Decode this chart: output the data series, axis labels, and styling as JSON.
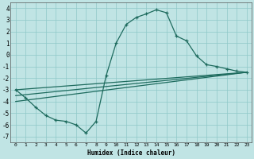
{
  "xlabel": "Humidex (Indice chaleur)",
  "background_color": "#c0e4e4",
  "line_color": "#1e6b5e",
  "xlim": [
    -0.5,
    23.5
  ],
  "ylim": [
    -7.5,
    4.5
  ],
  "xtick_labels": [
    "0",
    "1",
    "2",
    "3",
    "4",
    "5",
    "6",
    "7",
    "8",
    "9",
    "10",
    "11",
    "12",
    "13",
    "14",
    "15",
    "16",
    "17",
    "18",
    "19",
    "20",
    "21",
    "22",
    "23"
  ],
  "ytick_labels": [
    "-7",
    "-6",
    "-5",
    "-4",
    "-3",
    "-2",
    "-1",
    "0",
    "1",
    "2",
    "3",
    "4"
  ],
  "ytick_vals": [
    -7,
    -6,
    -5,
    -4,
    -3,
    -2,
    -1,
    0,
    1,
    2,
    3,
    4
  ],
  "xtick_vals": [
    0,
    1,
    2,
    3,
    4,
    5,
    6,
    7,
    8,
    9,
    10,
    11,
    12,
    13,
    14,
    15,
    16,
    17,
    18,
    19,
    20,
    21,
    22,
    23
  ],
  "main_line": {
    "x": [
      0,
      1,
      2,
      3,
      4,
      5,
      6,
      7,
      8,
      9,
      10,
      11,
      12,
      13,
      14,
      15,
      16,
      17,
      18,
      19,
      20,
      21,
      22,
      23
    ],
    "y": [
      -3,
      -3.7,
      -4.5,
      -5.2,
      -5.6,
      -5.7,
      -6.0,
      -6.7,
      -5.7,
      -1.8,
      1.0,
      2.6,
      3.2,
      3.5,
      3.85,
      3.6,
      1.6,
      1.2,
      -0.1,
      -0.85,
      -1.0,
      -1.2,
      -1.4,
      -1.5
    ]
  },
  "diag_line1": {
    "x": [
      0,
      23
    ],
    "y": [
      -3.0,
      -1.5
    ]
  },
  "diag_line2": {
    "x": [
      0,
      23
    ],
    "y": [
      -3.5,
      -1.5
    ]
  },
  "diag_line3": {
    "x": [
      0,
      23
    ],
    "y": [
      -4.0,
      -1.5
    ]
  }
}
